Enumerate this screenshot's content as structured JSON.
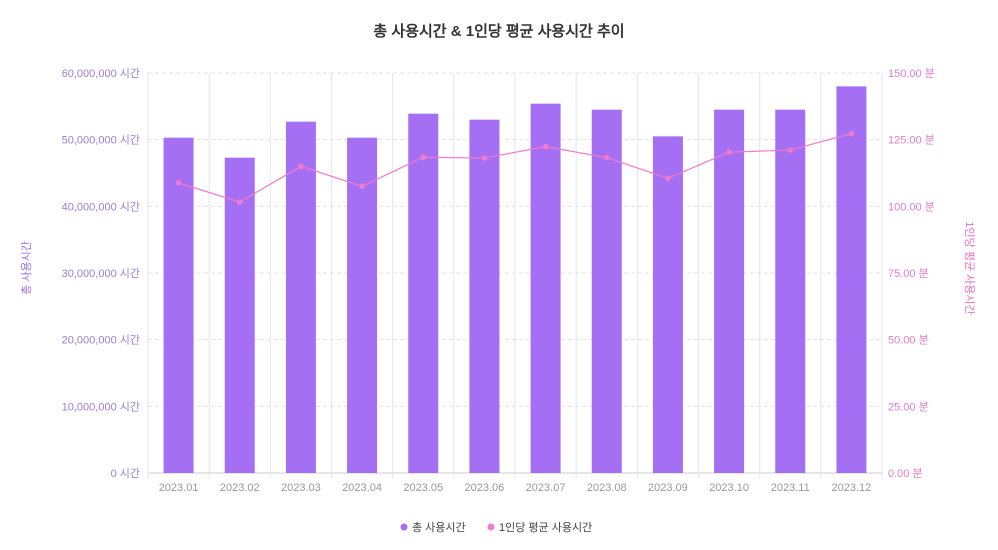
{
  "chart_data": {
    "type": "bar+line",
    "title": "총 사용시간 & 1인당 평균 사용시간 추이",
    "categories": [
      "2023.01",
      "2023.02",
      "2023.03",
      "2023.04",
      "2023.05",
      "2023.06",
      "2023.07",
      "2023.08",
      "2023.09",
      "2023.10",
      "2023.11",
      "2023.12"
    ],
    "series": [
      {
        "name": "총 사용시간",
        "type": "bar",
        "axis": "left",
        "color": "#a56ff4",
        "values": [
          50300000,
          47300000,
          52700000,
          50300000,
          53900000,
          53000000,
          55400000,
          54500000,
          50500000,
          54500000,
          54500000,
          58000000
        ]
      },
      {
        "name": "1인당 평균 사용시간",
        "type": "line",
        "axis": "right",
        "color": "#f07acb",
        "values": [
          108.8,
          101.6,
          115.0,
          107.5,
          118.4,
          118.1,
          122.4,
          118.3,
          110.5,
          120.3,
          121.1,
          127.3
        ]
      }
    ],
    "y_left": {
      "label": "총 사용시간",
      "ylim": [
        0,
        60000000
      ],
      "ticks": [
        "0 시간",
        "10,000,000 시간",
        "20,000,000 시간",
        "30,000,000 시간",
        "40,000,000 시간",
        "50,000,000 시간",
        "60,000,000 시간"
      ]
    },
    "y_right": {
      "label": "1인당 평균 사용시간",
      "ylim": [
        0,
        150
      ],
      "ticks": [
        "0.00 분",
        "25.00 분",
        "50.00 분",
        "75.00 분",
        "100.00 분",
        "125.00 분",
        "150.00 분"
      ]
    },
    "grid": true,
    "legend_position": "bottom-center"
  }
}
